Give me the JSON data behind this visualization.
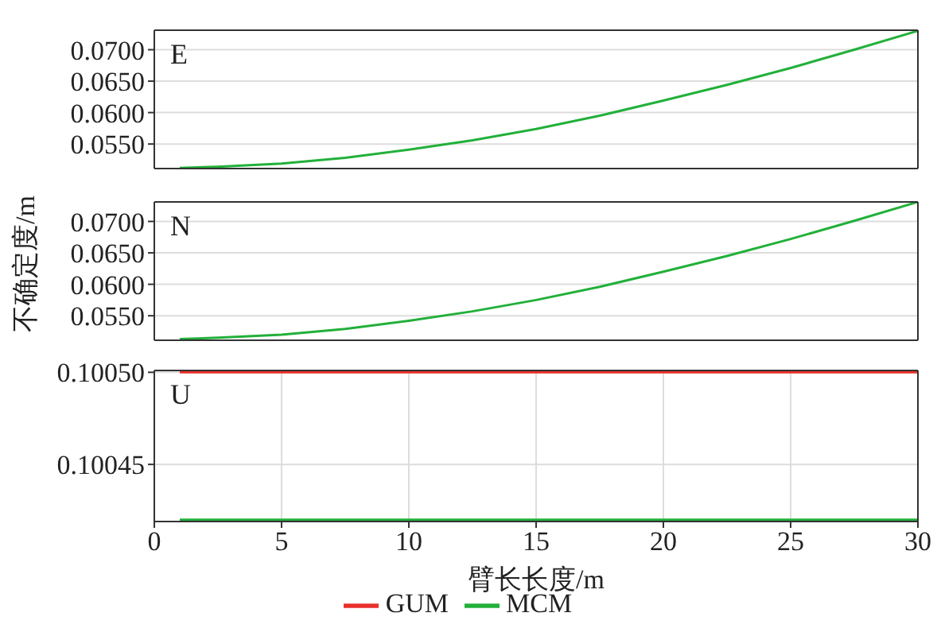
{
  "chart_data": [
    {
      "type": "line",
      "title": "E",
      "x": [
        1,
        2.5,
        5,
        7.5,
        10,
        12.5,
        15,
        17.5,
        20,
        22.5,
        25,
        27.5,
        30
      ],
      "series": [
        {
          "color": "#22b03a",
          "values": [
            0.0512,
            0.0514,
            0.0519,
            0.0528,
            0.0541,
            0.0556,
            0.0574,
            0.0595,
            0.0619,
            0.0644,
            0.0671,
            0.07,
            0.073
          ]
        }
      ],
      "xlim": [
        0,
        30
      ],
      "xticks": [
        0,
        5,
        10,
        15,
        20,
        25,
        30
      ],
      "ylim": [
        0.0511,
        0.0731
      ],
      "yticks": [
        {
          "value": 0.055,
          "label": "0.0550"
        },
        {
          "value": 0.06,
          "label": "0.0600"
        },
        {
          "value": 0.065,
          "label": "0.0650"
        },
        {
          "value": 0.07,
          "label": "0.0700"
        }
      ],
      "tick_labels": "y",
      "grid": true,
      "marker": "none",
      "line_style": "solid"
    },
    {
      "type": "line",
      "title": "N",
      "ylabel": "不确定度/m",
      "x": [
        1,
        2.5,
        5,
        7.5,
        10,
        12.5,
        15,
        17.5,
        20,
        22.5,
        25,
        27.5,
        30
      ],
      "series": [
        {
          "color": "#22b03a",
          "values": [
            0.0513,
            0.0515,
            0.052,
            0.0529,
            0.0542,
            0.0557,
            0.0575,
            0.0596,
            0.062,
            0.0645,
            0.0672,
            0.0701,
            0.0731
          ]
        }
      ],
      "xlim": [
        0,
        30
      ],
      "xticks": [
        0,
        5,
        10,
        15,
        20,
        25,
        30
      ],
      "ylim": [
        0.0511,
        0.0731
      ],
      "yticks": [
        {
          "value": 0.055,
          "label": "0.0550"
        },
        {
          "value": 0.06,
          "label": "0.0600"
        },
        {
          "value": 0.065,
          "label": "0.0650"
        },
        {
          "value": 0.07,
          "label": "0.0700"
        }
      ],
      "tick_labels": "y",
      "grid": true,
      "marker": "none",
      "line_style": "solid"
    },
    {
      "type": "line",
      "title": "U",
      "xlabel": "臂长长度/m",
      "x": [
        1,
        30
      ],
      "series": [
        {
          "name": "GUM",
          "color": "#e8302a",
          "values": [
            0.1005,
            0.1005
          ]
        },
        {
          "name": "MCM",
          "color": "#22b03a",
          "values": [
            0.10042,
            0.10042
          ]
        }
      ],
      "xlim": [
        0,
        30
      ],
      "xticks": [
        0,
        5,
        10,
        15,
        20,
        25,
        30
      ],
      "ylim": [
        0.100419,
        0.100501
      ],
      "yticks": [
        {
          "value": 0.10045,
          "label": "0.10045"
        },
        {
          "value": 0.1005,
          "label": "0.10050"
        }
      ],
      "grid": true,
      "legend": "bottom",
      "marker": "none",
      "line_style": "solid"
    }
  ]
}
